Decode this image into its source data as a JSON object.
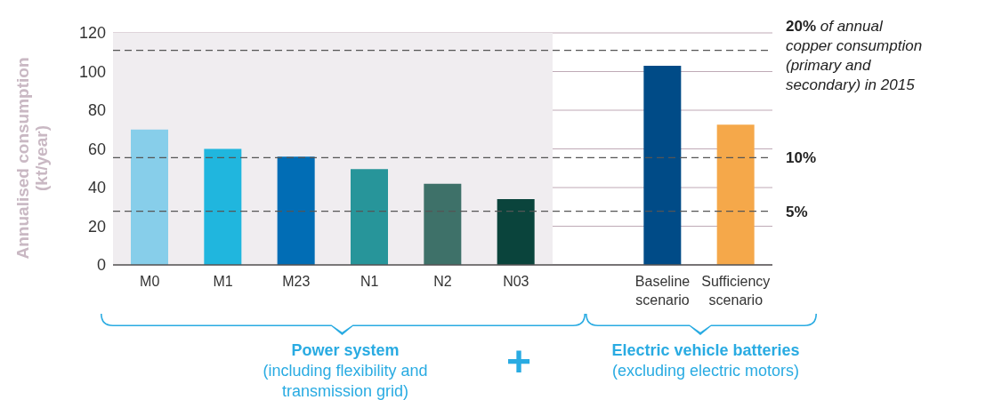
{
  "chart_data": {
    "type": "bar",
    "ylabel": "Annualised consumption (kt/year)",
    "categories": [
      "M0",
      "M1",
      "M23",
      "N1",
      "N2",
      "N03",
      null,
      "Baseline scenario",
      "Sufficiency scenario"
    ],
    "values": [
      70,
      60,
      56,
      49.5,
      42,
      34,
      null,
      103,
      72.5
    ],
    "colors": [
      "#87ceea",
      "#20b6de",
      "#016db5",
      "#27959a",
      "#3e7169",
      "#0a443c",
      "#ffffff",
      "#004b87",
      "#f5a84a"
    ],
    "ylim": [
      0,
      120
    ],
    "yticks": [
      0,
      20,
      40,
      60,
      80,
      100,
      120
    ],
    "grid": "y",
    "bands": [
      {
        "axis": "x",
        "from": "M0",
        "to": "N03",
        "color": "#f0edf0"
      }
    ],
    "ref_lines": [
      {
        "axis": "y",
        "value": 111,
        "line_style": "dashed"
      },
      {
        "axis": "y",
        "value": 55.5,
        "line_style": "dashed"
      },
      {
        "axis": "y",
        "value": 27.75,
        "line_style": "dashed"
      }
    ],
    "annotations": [
      "20% of annual copper consumption (primary and secondary) in 2015",
      "10%",
      "5%",
      "Power system",
      "(including flexibility and transmission grid)",
      "+",
      "Electric vehicle batteries",
      "(excluding electric motors)"
    ]
  }
}
